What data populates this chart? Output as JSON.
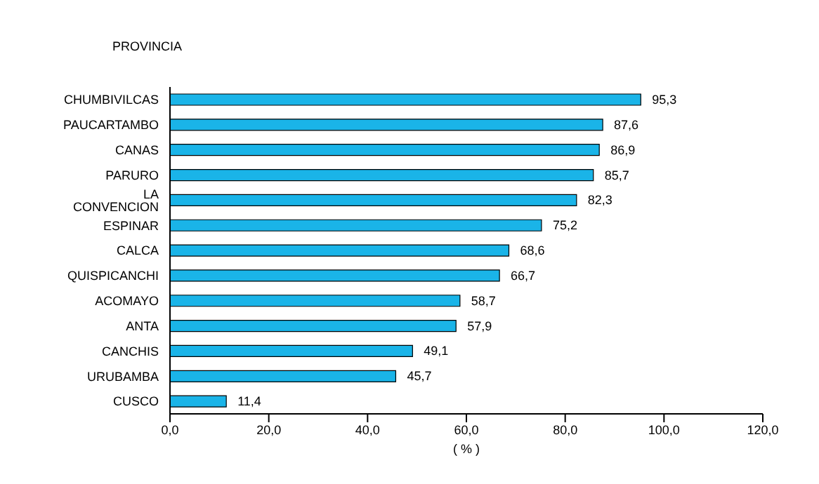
{
  "chart_data": {
    "type": "bar",
    "orientation": "horizontal",
    "ylabel": "PROVINCIA",
    "xlabel": "( % )",
    "categories": [
      "CHUMBIVILCAS",
      "PAUCARTAMBO",
      "CANAS",
      "PARURO",
      "LA CONVENCION",
      "ESPINAR",
      "CALCA",
      "QUISPICANCHI",
      "ACOMAYO",
      "ANTA",
      "CANCHIS",
      "URUBAMBA",
      "CUSCO"
    ],
    "values": [
      95.3,
      87.6,
      86.9,
      85.7,
      82.3,
      75.2,
      68.6,
      66.7,
      58.7,
      57.9,
      49.1,
      45.7,
      11.4
    ],
    "value_labels": [
      "95,3",
      "87,6",
      "86,9",
      "85,7",
      "82,3",
      "75,2",
      "68,6",
      "66,7",
      "58,7",
      "57,9",
      "49,1",
      "45,7",
      "11,4"
    ],
    "color": "#1ab4e8",
    "xlim": [
      0,
      120
    ],
    "xticks": [
      {
        "value": 0,
        "label": "0,0"
      },
      {
        "value": 20,
        "label": "20,0"
      },
      {
        "value": 40,
        "label": "40,0"
      },
      {
        "value": 60,
        "label": "60,0"
      },
      {
        "value": 80,
        "label": "80,0"
      },
      {
        "value": 100,
        "label": "100,0"
      },
      {
        "value": 120,
        "label": "120,0"
      }
    ],
    "grid": false,
    "legend": false
  }
}
